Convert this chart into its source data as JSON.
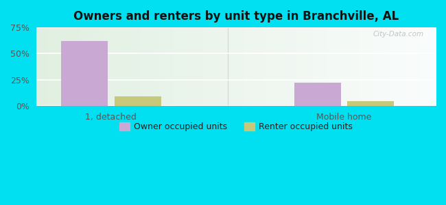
{
  "title": "Owners and renters by unit type in Branchville, AL",
  "categories": [
    "1, detached",
    "Mobile home"
  ],
  "owner_values": [
    62,
    22
  ],
  "renter_values": [
    9,
    5
  ],
  "owner_color": "#c9a8d4",
  "renter_color": "#c8c87a",
  "ylim": [
    0,
    75
  ],
  "yticks": [
    0,
    25,
    50,
    75
  ],
  "ytick_labels": [
    "0%",
    "25%",
    "50%",
    "75%"
  ],
  "background_outer": "#00e0f0",
  "watermark": "City-Data.com",
  "legend_owner": "Owner occupied units",
  "legend_renter": "Renter occupied units",
  "bar_width": 0.28,
  "x_positions": [
    0.5,
    1.9
  ],
  "xlim": [
    0.05,
    2.45
  ]
}
